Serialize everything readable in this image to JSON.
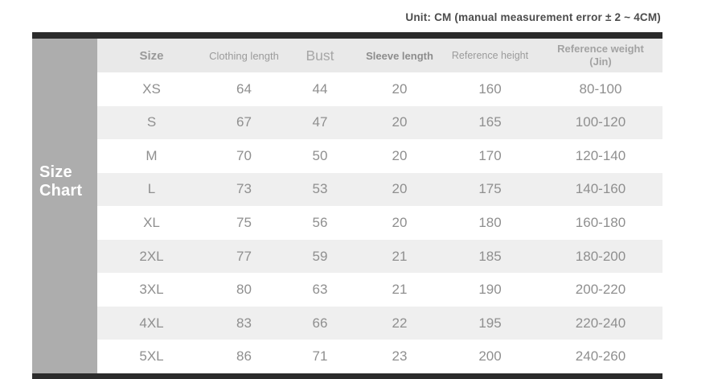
{
  "unit_note": "Unit: CM (manual measurement error ± 2 ~ 4CM)",
  "size_block": {
    "line1": "Size",
    "line2": "Chart"
  },
  "chart_data": {
    "type": "table",
    "title": "Size Chart",
    "note": "Unit: CM (manual measurement error ± 2 ~ 4CM)",
    "columns": [
      {
        "label": "Size"
      },
      {
        "label": "Clothing length"
      },
      {
        "label": "Bust"
      },
      {
        "label": "Sleeve length"
      },
      {
        "label": "Reference height"
      },
      {
        "label": "Reference weight",
        "sub": "(Jin)"
      }
    ],
    "rows": [
      [
        "XS",
        "64",
        "44",
        "20",
        "160",
        "80-100"
      ],
      [
        "S",
        "67",
        "47",
        "20",
        "165",
        "100-120"
      ],
      [
        "M",
        "70",
        "50",
        "20",
        "170",
        "120-140"
      ],
      [
        "L",
        "73",
        "53",
        "20",
        "175",
        "140-160"
      ],
      [
        "XL",
        "75",
        "56",
        "20",
        "180",
        "160-180"
      ],
      [
        "2XL",
        "77",
        "59",
        "21",
        "185",
        "180-200"
      ],
      [
        "3XL",
        "80",
        "63",
        "21",
        "190",
        "200-220"
      ],
      [
        "4XL",
        "83",
        "66",
        "22",
        "195",
        "220-240"
      ],
      [
        "5XL",
        "86",
        "71",
        "23",
        "200",
        "240-260"
      ]
    ]
  },
  "colors": {
    "top_bottom_bar": "#2b2b2b",
    "size_block_bg": "#adadad",
    "size_block_text": "#ffffff",
    "header_bg": "#e9e9e9",
    "stripe_bg": "#efefef",
    "cell_text": "#8f8f8f",
    "unit_note_text": "#4c4c4c"
  }
}
